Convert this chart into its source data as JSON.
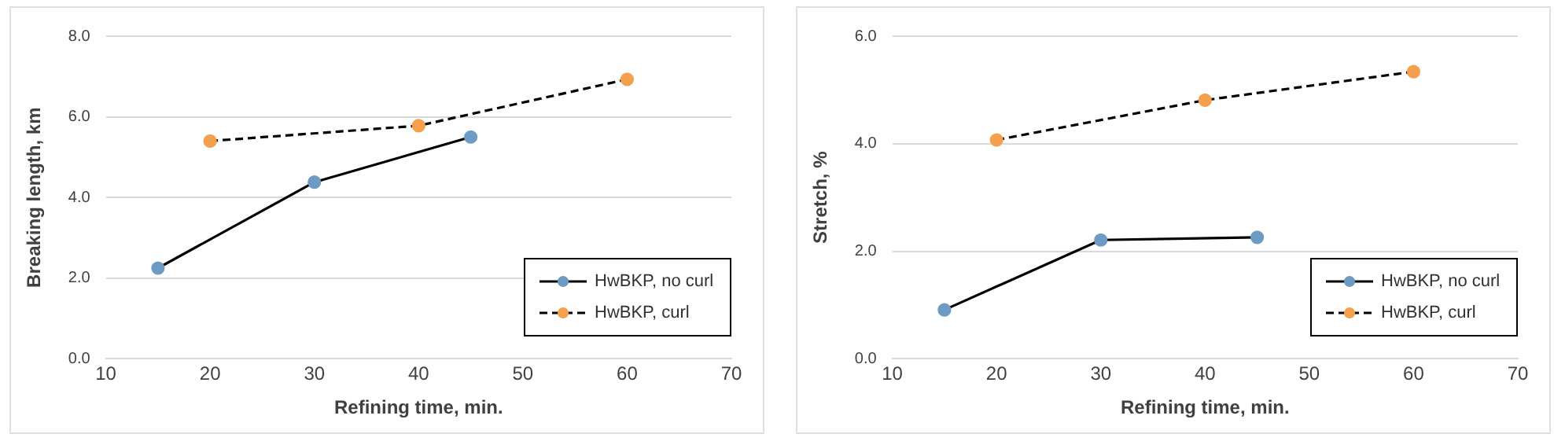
{
  "chart_data": [
    {
      "type": "line",
      "xlabel": "Refining time, min.",
      "ylabel": "Breaking length, km",
      "xlim": [
        10,
        70
      ],
      "xticks": [
        10,
        20,
        30,
        40,
        50,
        60,
        70
      ],
      "ylim": [
        0,
        8
      ],
      "yticks": [
        {
          "value": 0,
          "label": "0.0"
        },
        {
          "value": 2,
          "label": "2.0"
        },
        {
          "value": 4,
          "label": "4.0"
        },
        {
          "value": 6,
          "label": "6.0"
        },
        {
          "value": 8,
          "label": "8.0"
        }
      ],
      "grid": "y",
      "legend": "bottom right",
      "marker": "circle",
      "series": [
        {
          "name": "HwBKP, no curl",
          "color": "#6d9bc3",
          "line_style": "solid",
          "x": [
            15,
            30,
            45
          ],
          "values": [
            2.25,
            4.38,
            5.5
          ]
        },
        {
          "name": "HwBKP, curl",
          "color": "#f4a04c",
          "line_style": "dashed",
          "x": [
            20,
            40,
            60
          ],
          "values": [
            5.4,
            5.78,
            6.93
          ]
        }
      ]
    },
    {
      "type": "line",
      "xlabel": "Refining time, min.",
      "ylabel": "Stretch, %",
      "xlim": [
        10,
        70
      ],
      "xticks": [
        10,
        20,
        30,
        40,
        50,
        60,
        70
      ],
      "ylim": [
        0,
        6
      ],
      "yticks": [
        {
          "value": 0,
          "label": "0.0"
        },
        {
          "value": 2,
          "label": "2.0"
        },
        {
          "value": 4,
          "label": "4.0"
        },
        {
          "value": 6,
          "label": "6.0"
        }
      ],
      "grid": "y",
      "legend": "bottom right",
      "marker": "circle",
      "series": [
        {
          "name": "HwBKP, no curl",
          "color": "#6d9bc3",
          "line_style": "solid",
          "x": [
            15,
            30,
            45
          ],
          "values": [
            0.91,
            2.21,
            2.26
          ]
        },
        {
          "name": "HwBKP, curl",
          "color": "#f4a04c",
          "line_style": "dashed",
          "x": [
            20,
            40,
            60
          ],
          "values": [
            4.07,
            4.81,
            5.34
          ]
        }
      ]
    }
  ]
}
